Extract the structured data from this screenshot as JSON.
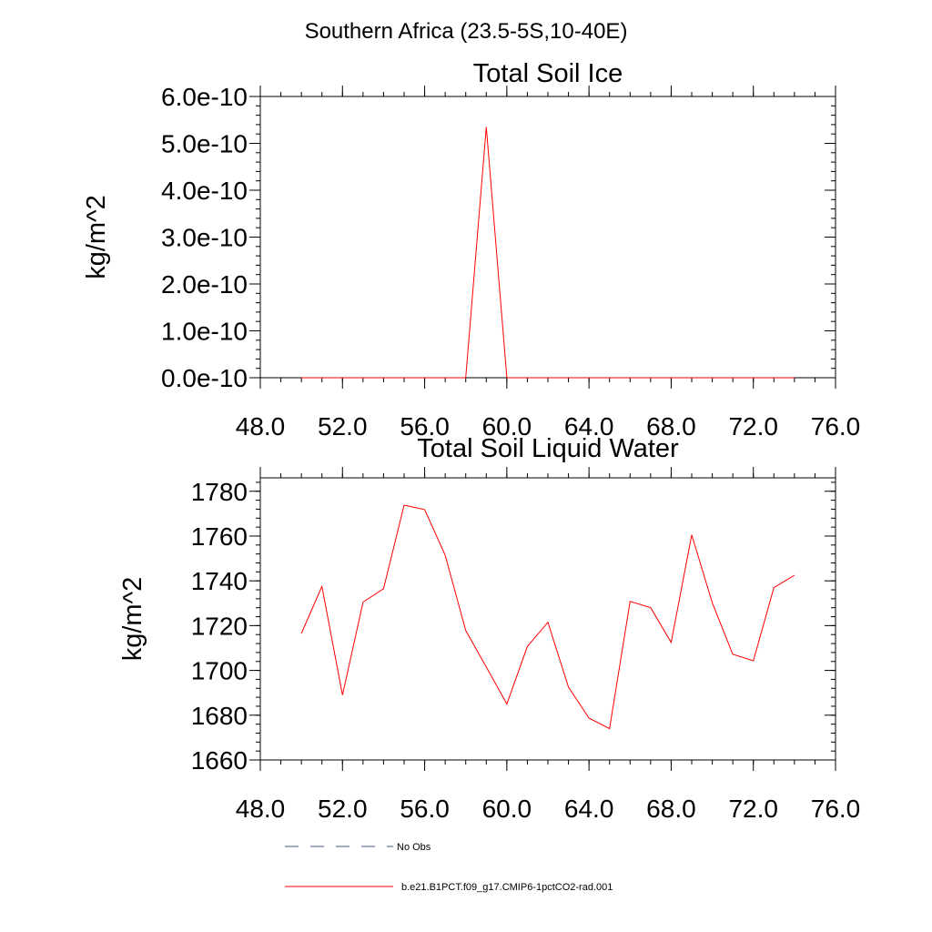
{
  "figure": {
    "suptitle": "Southern Africa (23.5-5S,10-40E)"
  },
  "chart_data": [
    {
      "type": "line",
      "title": "Total Soil Ice",
      "xlabel": "",
      "ylabel": "kg/m^2",
      "xlim": [
        48,
        76
      ],
      "ylim": [
        0,
        6e-10
      ],
      "xticks": [
        48,
        52,
        56,
        60,
        64,
        68,
        72,
        76
      ],
      "xtick_labels": [
        "48.0",
        "52.0",
        "56.0",
        "60.0",
        "64.0",
        "68.0",
        "72.0",
        "76.0"
      ],
      "yticks": [
        0,
        1e-10,
        2e-10,
        3e-10,
        4e-10,
        5e-10,
        6e-10
      ],
      "ytick_labels": [
        "0.0e-10",
        "1.0e-10",
        "2.0e-10",
        "3.0e-10",
        "4.0e-10",
        "5.0e-10",
        "6.0e-10"
      ],
      "grid": false,
      "series": [
        {
          "name": "b.e21.B1PCT.f09_g17.CMIP6-1pctCO2-rad.001",
          "color": "#ff0000",
          "x": [
            50,
            51,
            52,
            53,
            54,
            55,
            56,
            57,
            58,
            59,
            60,
            61,
            62,
            63,
            64,
            65,
            66,
            67,
            68,
            69,
            70,
            71,
            72,
            73,
            74
          ],
          "values": [
            0,
            0,
            0,
            0,
            0,
            0,
            0,
            0,
            0,
            5.35e-10,
            0,
            0,
            0,
            0,
            0,
            0,
            0,
            0,
            0,
            0,
            0,
            0,
            0,
            0,
            0
          ]
        }
      ]
    },
    {
      "type": "line",
      "title": "Total Soil Liquid Water",
      "xlabel": "",
      "ylabel": "kg/m^2",
      "xlim": [
        48,
        76
      ],
      "ylim": [
        1660,
        1786
      ],
      "xticks": [
        48,
        52,
        56,
        60,
        64,
        68,
        72,
        76
      ],
      "xtick_labels": [
        "48.0",
        "52.0",
        "56.0",
        "60.0",
        "64.0",
        "68.0",
        "72.0",
        "76.0"
      ],
      "yticks": [
        1660,
        1680,
        1700,
        1720,
        1740,
        1760,
        1780
      ],
      "ytick_labels": [
        "1660",
        "1680",
        "1700",
        "1720",
        "1740",
        "1760",
        "1780"
      ],
      "grid": false,
      "series": [
        {
          "name": "b.e21.B1PCT.f09_g17.CMIP6-1pctCO2-rad.001",
          "color": "#ff0000",
          "x": [
            50,
            51,
            52,
            53,
            54,
            55,
            56,
            57,
            58,
            59,
            60,
            61,
            62,
            63,
            64,
            65,
            66,
            67,
            68,
            69,
            70,
            71,
            72,
            73,
            74
          ],
          "values": [
            1716.5,
            1737.5,
            1689,
            1730.5,
            1736.5,
            1773.8,
            1771.8,
            1751.5,
            1717.8,
            1701.5,
            1685,
            1710.7,
            1721.5,
            1692.5,
            1678.7,
            1674,
            1730.8,
            1728,
            1712.5,
            1760.5,
            1730.2,
            1707.2,
            1704.3,
            1737,
            1742.5
          ]
        }
      ]
    }
  ],
  "legend": {
    "entries": [
      {
        "label": "No Obs",
        "style": "dashed",
        "color": "#4a5a8a"
      },
      {
        "label": "b.e21.B1PCT.f09_g17.CMIP6-1pctCO2-rad.001",
        "style": "solid",
        "color": "#ff0000"
      }
    ]
  }
}
